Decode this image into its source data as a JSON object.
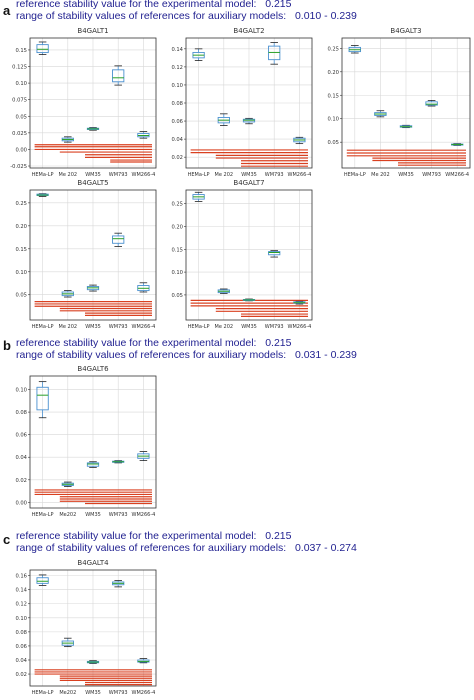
{
  "sections": [
    {
      "letter": "a",
      "line1": "reference stability value for the experimental model:   0.215",
      "line2": "range of stability values of references for auxiliary models:   0.010 - 0.239"
    },
    {
      "letter": "b",
      "line1": "reference stability value for the experimental model:   0.215",
      "line2": "range of stability values of references for auxiliary models:   0.031 - 0.239"
    },
    {
      "letter": "c",
      "line1": "reference stability value for the experimental model:   0.215",
      "line2": "range of stability values of references for auxiliary models:   0.037 - 0.274"
    }
  ],
  "colors": {
    "box": "#4a90d0",
    "median": "#2aa02a",
    "reference_lines": "#d94020",
    "grid": "#d8d8d8",
    "text": "#1f1f8f"
  },
  "chart_data": [
    {
      "type": "box",
      "title": "B4GALT1",
      "categories": [
        "HEMa-LP",
        "Me 202",
        "WM35",
        "WM793",
        "WM266-4"
      ],
      "yticks": [
        -0.025,
        0.0,
        0.025,
        0.05,
        0.075,
        0.1,
        0.125,
        0.15
      ],
      "ylim": [
        -0.028,
        0.168
      ],
      "grid": true,
      "boxes": [
        {
          "whislo": 0.143,
          "q1": 0.146,
          "med": 0.151,
          "q3": 0.158,
          "whishi": 0.162
        },
        {
          "whislo": 0.011,
          "q1": 0.013,
          "med": 0.015,
          "q3": 0.017,
          "whishi": 0.019
        },
        {
          "whislo": 0.029,
          "q1": 0.03,
          "med": 0.031,
          "q3": 0.032,
          "whishi": 0.033
        },
        {
          "whislo": 0.097,
          "q1": 0.102,
          "med": 0.108,
          "q3": 0.12,
          "whishi": 0.126
        },
        {
          "whislo": 0.017,
          "q1": 0.019,
          "med": 0.021,
          "q3": 0.024,
          "whishi": 0.027
        }
      ],
      "reference_lines": [
        {
          "from": 0,
          "values": [
            0.0,
            0.004,
            0.007
          ]
        },
        {
          "from": 1,
          "values": [
            -0.004
          ]
        },
        {
          "from": 2,
          "values": [
            -0.008,
            -0.012
          ]
        },
        {
          "from": 3,
          "values": [
            -0.016,
            -0.019
          ]
        }
      ]
    },
    {
      "type": "box",
      "title": "B4GALT2",
      "categories": [
        "HEMa-LP",
        "Me 202",
        "WM35",
        "WM793",
        "WM266-4"
      ],
      "yticks": [
        0.02,
        0.04,
        0.06,
        0.08,
        0.1,
        0.12,
        0.14
      ],
      "ylim": [
        0.008,
        0.152
      ],
      "grid": true,
      "boxes": [
        {
          "whislo": 0.127,
          "q1": 0.13,
          "med": 0.133,
          "q3": 0.136,
          "whishi": 0.14
        },
        {
          "whislo": 0.055,
          "q1": 0.058,
          "med": 0.061,
          "q3": 0.064,
          "whishi": 0.068
        },
        {
          "whislo": 0.057,
          "q1": 0.059,
          "med": 0.061,
          "q3": 0.062,
          "whishi": 0.063
        },
        {
          "whislo": 0.123,
          "q1": 0.128,
          "med": 0.136,
          "q3": 0.143,
          "whishi": 0.147
        },
        {
          "whislo": 0.035,
          "q1": 0.037,
          "med": 0.039,
          "q3": 0.041,
          "whishi": 0.042
        }
      ],
      "reference_lines": [
        {
          "from": 0,
          "values": [
            0.028,
            0.025
          ]
        },
        {
          "from": 1,
          "values": [
            0.022,
            0.019
          ]
        },
        {
          "from": 2,
          "values": [
            0.016,
            0.013,
            0.01
          ]
        }
      ]
    },
    {
      "type": "box",
      "title": "B4GALT3",
      "categories": [
        "HEMa-LP",
        "Me 202",
        "WM35",
        "WM793",
        "WM266-4"
      ],
      "yticks": [
        0.05,
        0.1,
        0.15,
        0.2,
        0.25
      ],
      "ylim": [
        -0.005,
        0.272
      ],
      "grid": true,
      "boxes": [
        {
          "whislo": 0.24,
          "q1": 0.243,
          "med": 0.247,
          "q3": 0.252,
          "whishi": 0.256
        },
        {
          "whislo": 0.104,
          "q1": 0.107,
          "med": 0.11,
          "q3": 0.113,
          "whishi": 0.117
        },
        {
          "whislo": 0.081,
          "q1": 0.082,
          "med": 0.083,
          "q3": 0.085,
          "whishi": 0.086
        },
        {
          "whislo": 0.127,
          "q1": 0.129,
          "med": 0.131,
          "q3": 0.136,
          "whishi": 0.139
        },
        {
          "whislo": 0.043,
          "q1": 0.044,
          "med": 0.045,
          "q3": 0.046,
          "whishi": 0.047
        }
      ],
      "reference_lines": [
        {
          "from": 0,
          "values": [
            0.033,
            0.027,
            0.021
          ]
        },
        {
          "from": 1,
          "values": [
            0.016,
            0.011
          ]
        },
        {
          "from": 2,
          "values": [
            0.006,
            0.001
          ]
        }
      ]
    },
    {
      "type": "box",
      "title": "B4GALT5",
      "categories": [
        "HEMa-LP",
        "Me 202",
        "WM35",
        "WM793",
        "WM266-4"
      ],
      "yticks": [
        0.05,
        0.1,
        0.15,
        0.2,
        0.25
      ],
      "ylim": [
        -0.005,
        0.278
      ],
      "grid": true,
      "boxes": [
        {
          "whislo": 0.264,
          "q1": 0.266,
          "med": 0.267,
          "q3": 0.269,
          "whishi": 0.27
        },
        {
          "whislo": 0.045,
          "q1": 0.048,
          "med": 0.052,
          "q3": 0.056,
          "whishi": 0.059
        },
        {
          "whislo": 0.058,
          "q1": 0.061,
          "med": 0.065,
          "q3": 0.068,
          "whishi": 0.071
        },
        {
          "whislo": 0.155,
          "q1": 0.162,
          "med": 0.172,
          "q3": 0.178,
          "whishi": 0.184
        },
        {
          "whislo": 0.056,
          "q1": 0.059,
          "med": 0.064,
          "q3": 0.07,
          "whishi": 0.076
        }
      ],
      "reference_lines": [
        {
          "from": 0,
          "values": [
            0.035,
            0.03,
            0.025
          ]
        },
        {
          "from": 1,
          "values": [
            0.02,
            0.015
          ]
        },
        {
          "from": 2,
          "values": [
            0.01,
            0.005
          ]
        }
      ]
    },
    {
      "type": "box",
      "title": "B4GALT7",
      "categories": [
        "HEMa-LP",
        "Me 202",
        "WM35",
        "WM793",
        "WM266-4"
      ],
      "yticks": [
        0.05,
        0.1,
        0.15,
        0.2,
        0.25
      ],
      "ylim": [
        -0.005,
        0.28
      ],
      "grid": true,
      "boxes": [
        {
          "whislo": 0.255,
          "q1": 0.26,
          "med": 0.265,
          "q3": 0.27,
          "whishi": 0.275
        },
        {
          "whislo": 0.053,
          "q1": 0.055,
          "med": 0.058,
          "q3": 0.061,
          "whishi": 0.063
        },
        {
          "whislo": 0.037,
          "q1": 0.038,
          "med": 0.039,
          "q3": 0.04,
          "whishi": 0.041
        },
        {
          "whislo": 0.133,
          "q1": 0.138,
          "med": 0.143,
          "q3": 0.145,
          "whishi": 0.147
        },
        {
          "whislo": 0.03,
          "q1": 0.032,
          "med": 0.033,
          "q3": 0.035,
          "whishi": 0.036
        }
      ],
      "reference_lines": [
        {
          "from": 0,
          "values": [
            0.038,
            0.032,
            0.026
          ]
        },
        {
          "from": 1,
          "values": [
            0.02,
            0.014
          ]
        },
        {
          "from": 2,
          "values": [
            0.008,
            0.003
          ]
        }
      ]
    },
    {
      "type": "box",
      "title": "B4GALT6",
      "categories": [
        "HEMa-LP",
        "Me202",
        "WM35",
        "WM793",
        "WM266-4"
      ],
      "yticks": [
        0.0,
        0.02,
        0.04,
        0.06,
        0.08,
        0.1
      ],
      "ylim": [
        -0.005,
        0.112
      ],
      "grid": true,
      "boxes": [
        {
          "whislo": 0.075,
          "q1": 0.082,
          "med": 0.095,
          "q3": 0.102,
          "whishi": 0.107
        },
        {
          "whislo": 0.014,
          "q1": 0.015,
          "med": 0.016,
          "q3": 0.017,
          "whishi": 0.018
        },
        {
          "whislo": 0.031,
          "q1": 0.032,
          "med": 0.034,
          "q3": 0.035,
          "whishi": 0.036
        },
        {
          "whislo": 0.035,
          "q1": 0.0355,
          "med": 0.036,
          "q3": 0.0365,
          "whishi": 0.037
        },
        {
          "whislo": 0.037,
          "q1": 0.039,
          "med": 0.041,
          "q3": 0.043,
          "whishi": 0.045
        }
      ],
      "reference_lines": [
        {
          "from": 0,
          "values": [
            0.011,
            0.009,
            0.007
          ]
        },
        {
          "from": 1,
          "values": [
            0.005,
            0.003,
            0.001
          ]
        },
        {
          "from": 2,
          "values": [
            -0.001
          ]
        }
      ]
    },
    {
      "type": "box",
      "title": "B4GALT4",
      "categories": [
        "HEMa-LP",
        "Me202",
        "WM35",
        "WM793",
        "WM266-4"
      ],
      "yticks": [
        0.02,
        0.04,
        0.06,
        0.08,
        0.1,
        0.12,
        0.14,
        0.16
      ],
      "ylim": [
        0.003,
        0.168
      ],
      "grid": true,
      "boxes": [
        {
          "whislo": 0.146,
          "q1": 0.149,
          "med": 0.152,
          "q3": 0.157,
          "whishi": 0.161
        },
        {
          "whislo": 0.059,
          "q1": 0.061,
          "med": 0.064,
          "q3": 0.067,
          "whishi": 0.071
        },
        {
          "whislo": 0.035,
          "q1": 0.036,
          "med": 0.037,
          "q3": 0.038,
          "whishi": 0.039
        },
        {
          "whislo": 0.144,
          "q1": 0.147,
          "med": 0.149,
          "q3": 0.151,
          "whishi": 0.153
        },
        {
          "whislo": 0.036,
          "q1": 0.037,
          "med": 0.038,
          "q3": 0.04,
          "whishi": 0.042
        }
      ],
      "reference_lines": [
        {
          "from": 0,
          "values": [
            0.026,
            0.023,
            0.02
          ]
        },
        {
          "from": 1,
          "values": [
            0.017,
            0.014,
            0.011
          ]
        },
        {
          "from": 2,
          "values": [
            0.008,
            0.005
          ]
        }
      ]
    }
  ]
}
